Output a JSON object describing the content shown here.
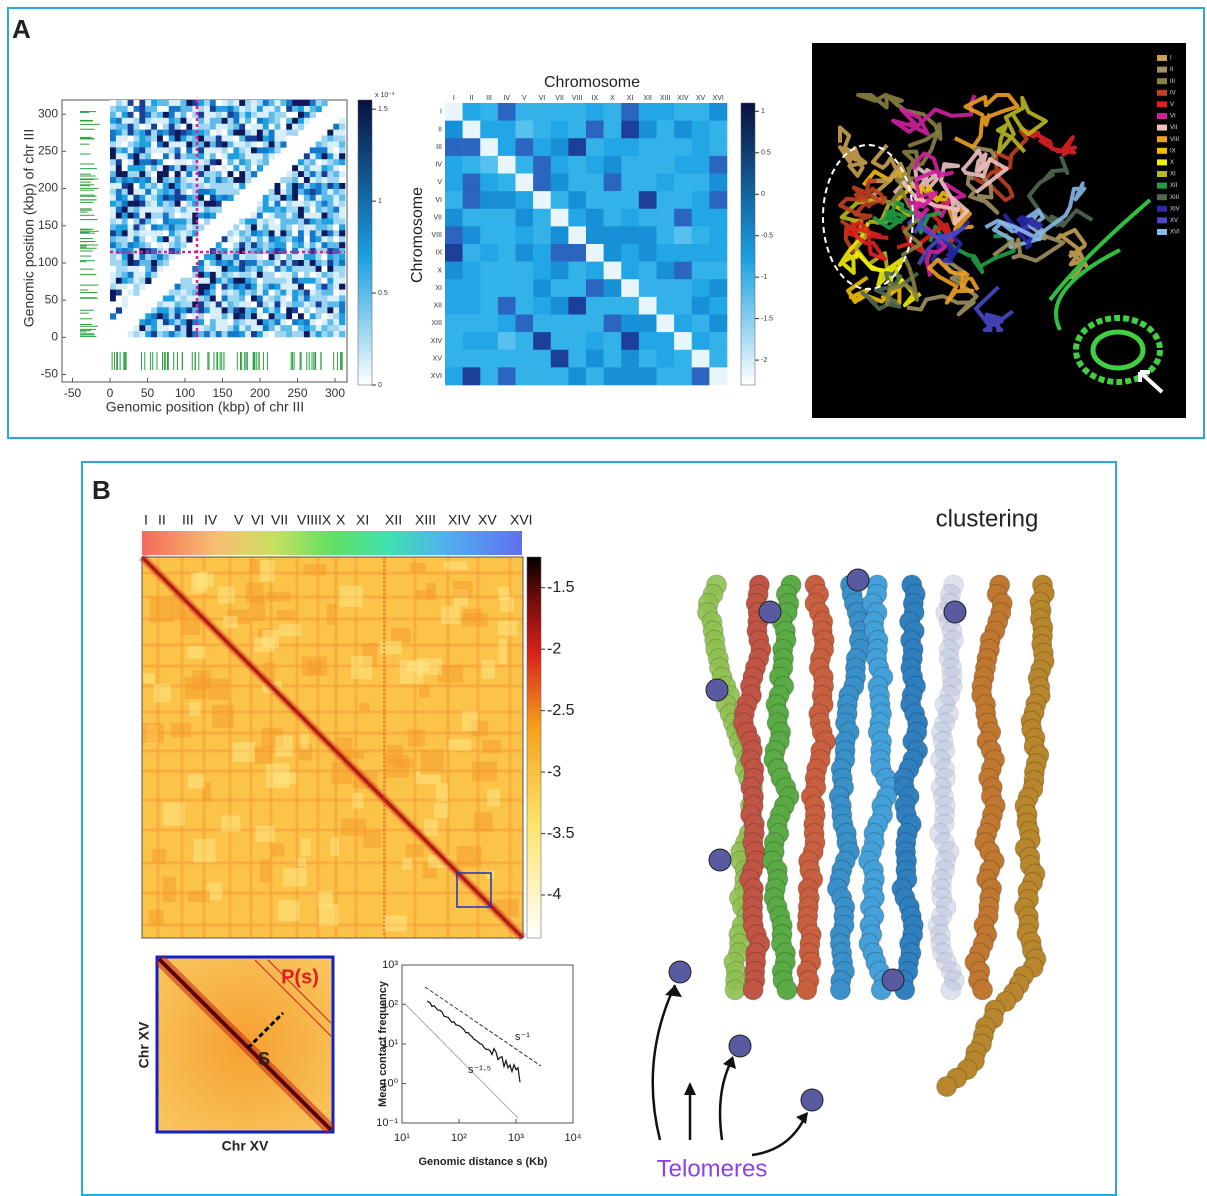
{
  "panel_a": {
    "label": "A",
    "contact_map": {
      "x_label": "Genomic position (kbp) of chr III",
      "y_label": "Genomic position (kbp) of chr III",
      "xlim": [
        -64,
        316
      ],
      "ylim": [
        -60,
        319
      ],
      "xticks": [
        -50,
        0,
        50,
        100,
        150,
        200,
        250,
        300
      ],
      "yticks": [
        -50,
        0,
        50,
        100,
        150,
        200,
        250,
        300
      ],
      "colorbar_scale": "x 10⁻³",
      "colorbar_lim": [
        0,
        1.55
      ],
      "colorbar_ticks": [
        0,
        0.5,
        1,
        1.5
      ]
    },
    "chromosome_map": {
      "title": "Chromosome",
      "y_label": "Chromosome",
      "labels": [
        "I",
        "II",
        "III",
        "IV",
        "V",
        "VI",
        "VII",
        "VIII",
        "IX",
        "X",
        "XI",
        "XII",
        "XIII",
        "XIV",
        "XV",
        "XVI"
      ],
      "colorbar_lim": [
        -2.3,
        1.1
      ],
      "colorbar_ticks": [
        1,
        0.5,
        0,
        -0.5,
        -1,
        -1.5,
        -2
      ]
    },
    "legend": [
      "I",
      "II",
      "III",
      "IV",
      "V",
      "VI",
      "VII",
      "VIII",
      "IX",
      "X",
      "XI",
      "XII",
      "XIII",
      "XIV",
      "XV",
      "XVI"
    ]
  },
  "panel_b": {
    "label": "B",
    "chromosomes": [
      "I",
      "II",
      "III",
      "IV",
      "V",
      "VI",
      "VII",
      "VIII",
      "IX",
      "X",
      "XI",
      "XII",
      "XIII",
      "XIV",
      "XV",
      "XVI"
    ],
    "colorbar_lim": [
      -4.35,
      -1.25
    ],
    "colorbar_ticks": [
      -1.5,
      -2,
      -2.5,
      -3,
      -3.5,
      -4
    ],
    "inset_y_label": "Chr XV",
    "inset_x_label": "Chr XV",
    "ps_label": "P(s)",
    "s_label": "S",
    "decay_plot": {
      "y_label": "Mean contact frequency",
      "x_label": "Genomic distance s (Kb)",
      "xticks": [
        {
          "value": 10,
          "label": "10¹"
        },
        {
          "value": 100,
          "label": "10²"
        },
        {
          "value": 1000,
          "label": "10³"
        },
        {
          "value": 10000,
          "label": "10⁴"
        }
      ],
      "yticks": [
        {
          "value": 0.1,
          "label": "10⁻¹"
        },
        {
          "value": 1,
          "label": "10⁰"
        },
        {
          "value": 10,
          "label": "10¹"
        },
        {
          "value": 100,
          "label": "10²"
        },
        {
          "value": 1000,
          "label": "10³"
        }
      ],
      "slope_labels": [
        "s⁻¹",
        "s⁻¹·⁵"
      ]
    },
    "title": "clustering",
    "telomeres_label": "Telomeres"
  }
}
